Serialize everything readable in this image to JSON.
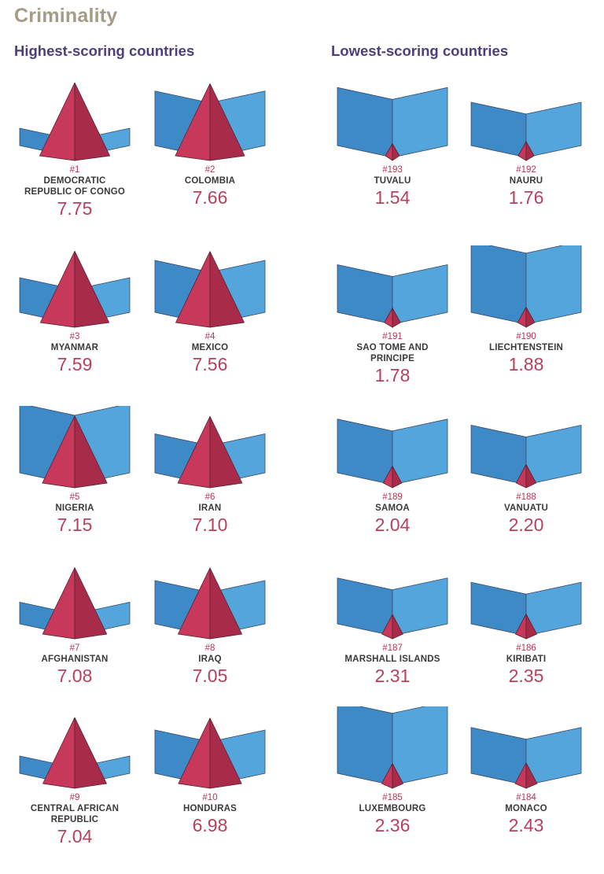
{
  "title": "Criminality",
  "left_heading": "Highest-scoring countries",
  "right_heading": "Lowest-scoring countries",
  "colors": {
    "title": "#a39c87",
    "heading": "#4e3f78",
    "wall_light": "#53a5db",
    "wall_dark": "#3e8ac6",
    "pyramid_light": "#c8385a",
    "pyramid_dark": "#a82c49",
    "score": "#b7415d"
  },
  "chart_data": [
    {
      "type": "bar",
      "title": "Highest-scoring countries",
      "categories": [
        "DEMOCRATIC REPUBLIC OF CONGO",
        "COLOMBIA",
        "MYANMAR",
        "MEXICO",
        "NIGERIA",
        "IRAN",
        "AFGHANISTAN",
        "IRAQ",
        "CENTRAL AFRICAN REPUBLIC",
        "HONDURAS"
      ],
      "ranks": [
        "#1",
        "#2",
        "#3",
        "#4",
        "#5",
        "#6",
        "#7",
        "#8",
        "#9",
        "#10"
      ],
      "values": [
        "7.75",
        "7.66",
        "7.59",
        "7.56",
        "7.15",
        "7.10",
        "7.08",
        "7.05",
        "7.04",
        "6.98"
      ],
      "resilience": [
        2.0,
        6.3,
        4.0,
        6.0,
        8.0,
        4.5,
        2.5,
        5.0,
        2.0,
        5.0
      ]
    },
    {
      "type": "bar",
      "title": "Lowest-scoring countries",
      "categories": [
        "TUVALU",
        "NAURU",
        "SAO TOME AND PRINCIPE",
        "LIECHTENSTEIN",
        "SAMOA",
        "VANUATU",
        "MARSHALL ISLANDS",
        "KIRIBATI",
        "LUXEMBOURG",
        "MONACO"
      ],
      "ranks": [
        "#193",
        "#192",
        "#191",
        "#190",
        "#189",
        "#188",
        "#187",
        "#186",
        "#185",
        "#184"
      ],
      "values": [
        "1.54",
        "1.76",
        "1.78",
        "1.88",
        "2.04",
        "2.20",
        "2.31",
        "2.35",
        "2.36",
        "2.43"
      ],
      "resilience": [
        6.7,
        5.0,
        5.5,
        8.2,
        6.2,
        5.5,
        5.3,
        4.8,
        8.3,
        5.3
      ]
    }
  ]
}
